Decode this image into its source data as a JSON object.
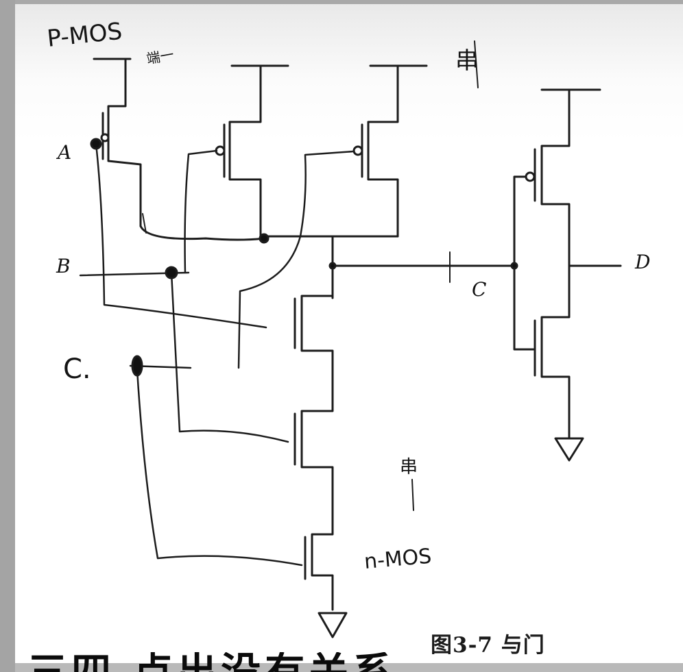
{
  "annotations": {
    "pmos": "P-MOS",
    "top_note": "端一",
    "top_right_note": "串",
    "mid_note": "串",
    "nmos": "n-MOS"
  },
  "labels": {
    "input_a": "A",
    "input_b": "B",
    "input_c_hand": "C.",
    "node_c": "C",
    "output_d": "D"
  },
  "caption": "图3-7   与门",
  "subtitle": "三四  点出没有关系"
}
